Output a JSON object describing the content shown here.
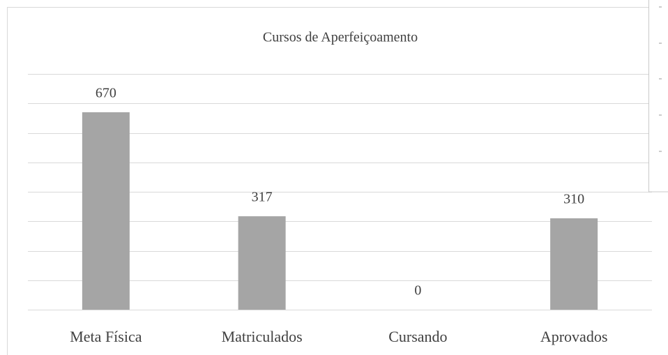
{
  "chart_data": {
    "type": "bar",
    "title": "Cursos de Aperfeiçoamento",
    "categories": [
      "Meta Física",
      "Matriculados",
      "Cursando",
      "Aprovados"
    ],
    "values": [
      670,
      317,
      0,
      310
    ],
    "color": "#a5a5a5",
    "ylim": [
      0,
      800
    ],
    "yticks": [
      0,
      100,
      200,
      300,
      400,
      500,
      600,
      700,
      800
    ],
    "grid": true
  }
}
